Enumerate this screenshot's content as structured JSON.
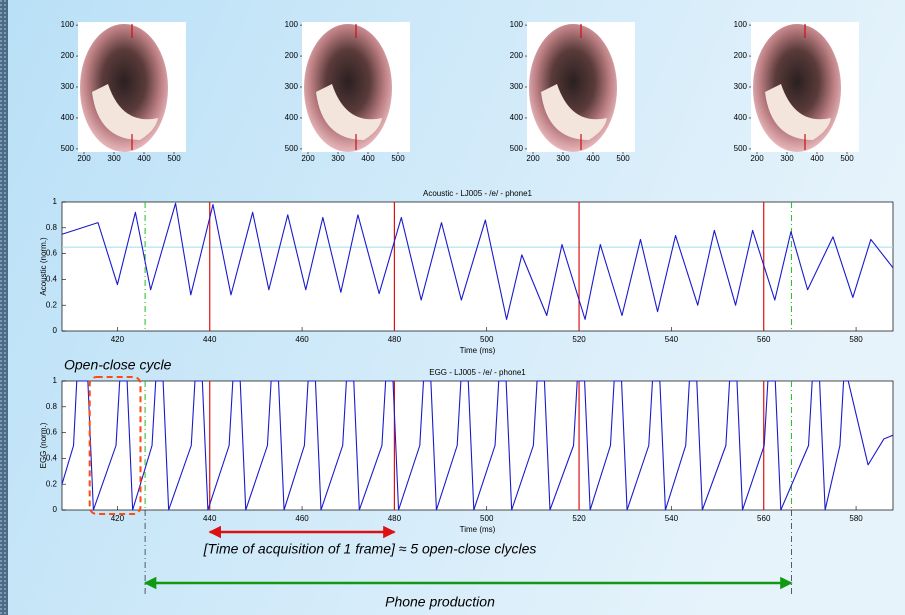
{
  "frame_axes": {
    "xlim": [
      180,
      540
    ],
    "ylim": [
      90,
      510
    ],
    "xticks": [
      200,
      300,
      400,
      500
    ],
    "yticks": [
      100,
      200,
      300,
      400,
      500
    ]
  },
  "chart_data": [
    {
      "type": "line",
      "title": "Acoustic - LJ005 - /e/ - phone1",
      "xlabel": "Time (ms)",
      "ylabel": "Acoustic (norm.)",
      "xlim": [
        408,
        588
      ],
      "ylim": [
        0,
        1
      ],
      "xticks": [
        420,
        440,
        460,
        480,
        500,
        520,
        540,
        560,
        580
      ],
      "yticks": [
        0,
        0.2,
        0.4,
        0.6,
        0.8,
        1
      ],
      "color": "#1a1acc",
      "ref_line": {
        "y": 0.65,
        "color": "#9fdcef"
      },
      "x": [
        408,
        415.8,
        420,
        423.9,
        427.2,
        432.6,
        435.9,
        440.7,
        444.6,
        449.3,
        452.8,
        456.9,
        460.8,
        464.5,
        468.4,
        472.1,
        476.7,
        481.5,
        485.8,
        490.2,
        494.5,
        499.7,
        504.3,
        507.6,
        513,
        516.3,
        521.3,
        524.6,
        529.3,
        533.3,
        537,
        540.9,
        545.7,
        549.3,
        553.9,
        557.6,
        562.4,
        565.9,
        569.5,
        575,
        579.3,
        583.2,
        588
      ],
      "values": [
        0.75,
        0.84,
        0.36,
        0.92,
        0.32,
        0.99,
        0.28,
        0.98,
        0.28,
        0.92,
        0.32,
        0.9,
        0.32,
        0.88,
        0.3,
        0.9,
        0.29,
        0.88,
        0.24,
        0.84,
        0.24,
        0.86,
        0.09,
        0.59,
        0.12,
        0.67,
        0.09,
        0.67,
        0.12,
        0.71,
        0.15,
        0.74,
        0.2,
        0.78,
        0.2,
        0.78,
        0.24,
        0.77,
        0.32,
        0.73,
        0.26,
        0.71,
        0.49
      ]
    },
    {
      "type": "line",
      "title": "EGG - LJ005 - /e/ - phone1",
      "xlabel": "Time (ms)",
      "ylabel": "EGG (norm.)",
      "xlim": [
        408,
        588
      ],
      "ylim": [
        0,
        1
      ],
      "xticks": [
        420,
        440,
        460,
        480,
        500,
        520,
        540,
        560,
        580
      ],
      "yticks": [
        0,
        0.2,
        0.4,
        0.6,
        0.8,
        1
      ],
      "color": "#1a1acc",
      "x": [
        408,
        410.5,
        411.2,
        413.6,
        414.8,
        419.7,
        420.5,
        422.1,
        423.3,
        427.5,
        428.3,
        429.9,
        431.1,
        436.0,
        436.8,
        438.4,
        439.6,
        444.2,
        445.0,
        446.6,
        447.8,
        452.5,
        453.3,
        454.9,
        456.1,
        460.5,
        461.3,
        462.9,
        464.1,
        468.8,
        469.6,
        471.2,
        472.4,
        477.3,
        478.1,
        479.7,
        480.9,
        485.5,
        486.3,
        487.9,
        489.1,
        493.6,
        494.4,
        496.0,
        497.2,
        501.8,
        502.6,
        504.2,
        505.4,
        510.1,
        510.9,
        512.5,
        513.7,
        518.8,
        519.6,
        521.2,
        522.4,
        526.8,
        527.6,
        529.2,
        530.4,
        535.1,
        535.9,
        537.5,
        538.7,
        543.1,
        543.9,
        545.5,
        546.7,
        551.8,
        552.6,
        554.2,
        555.4,
        560.1,
        560.9,
        562.5,
        563.7,
        569.7,
        570.5,
        572.1,
        573.3,
        576.5,
        577.3,
        578.3,
        582.6,
        586,
        588
      ],
      "values": [
        0.2,
        0.5,
        1,
        1,
        0,
        0.5,
        1,
        1,
        0,
        0.5,
        1,
        1,
        0,
        0.5,
        1,
        1,
        0,
        0.5,
        1,
        1,
        0,
        0.5,
        1,
        1,
        0,
        0.5,
        1,
        1,
        0,
        0.5,
        1,
        1,
        0,
        0.5,
        1,
        1,
        0,
        0.5,
        1,
        1,
        0,
        0.5,
        1,
        1,
        0,
        0.5,
        1,
        1,
        0,
        0.5,
        1,
        1,
        0,
        0.5,
        1,
        1,
        0,
        0.5,
        1,
        1,
        0,
        0.5,
        1,
        1,
        0,
        0.5,
        1,
        1,
        0,
        0.5,
        1,
        1,
        0,
        0.5,
        1,
        1,
        0,
        0.5,
        1,
        1,
        0,
        0.5,
        1,
        1,
        0.35,
        0.55,
        0.58
      ]
    }
  ],
  "frame_lines": {
    "color": "#dd1111",
    "x": [
      440,
      480,
      520,
      560
    ]
  },
  "phone_lines": {
    "color": "#22bb22",
    "x": [
      426,
      566
    ]
  },
  "annotations": [
    {
      "text": "Open-close cycle",
      "color": "#ff4a10",
      "x": [
        414,
        425
      ]
    },
    {
      "text": "[Time of acquisition of 1 frame] ≈ 5 open-close clycles",
      "color": "#dd1111",
      "x": [
        440,
        480
      ]
    },
    {
      "text": "Phone production",
      "color": "#119911",
      "x": [
        426,
        566
      ]
    }
  ]
}
